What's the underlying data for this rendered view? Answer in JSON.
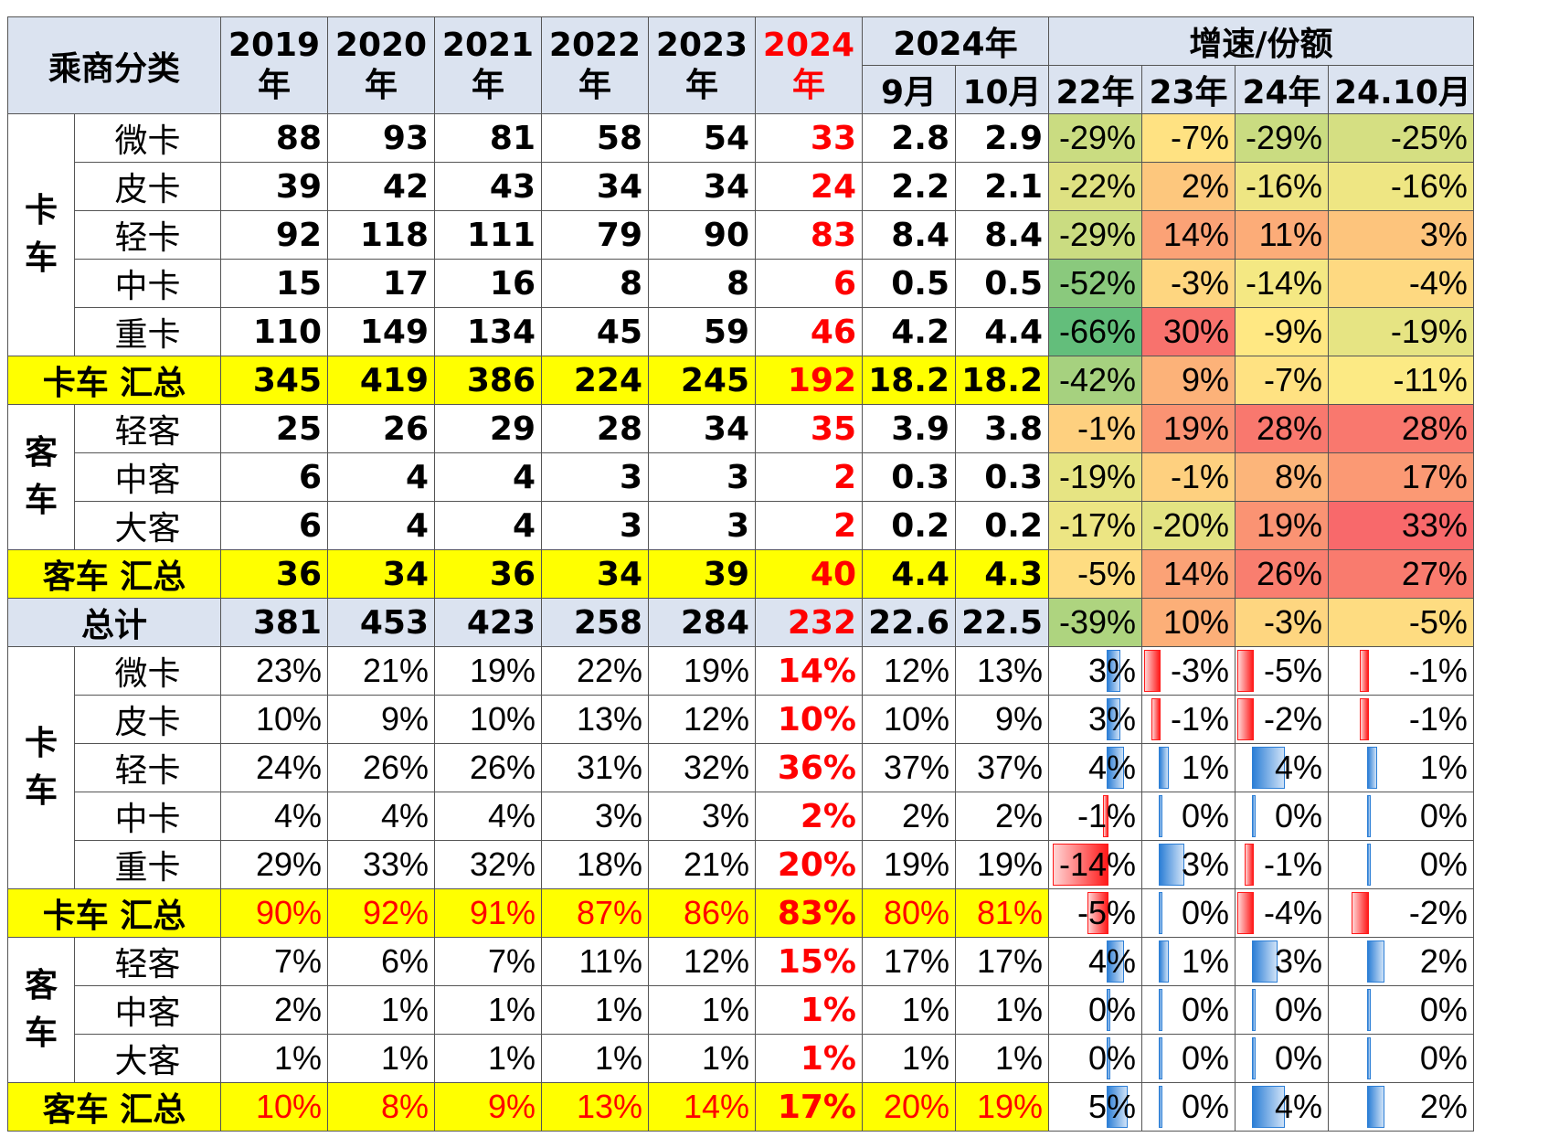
{
  "header": {
    "category": "乘商分类",
    "years": [
      "2019\n年",
      "2020\n年",
      "2021\n年",
      "2022\n年",
      "2023\n年",
      "2024\n年"
    ],
    "month_group": "2024年",
    "months": [
      "9月",
      "10月"
    ],
    "growth_group": "增速/份额",
    "growth_cols": [
      "22年",
      "23年",
      "24年",
      "24.10月"
    ]
  },
  "groups": {
    "truck": "卡车",
    "bus": "客车"
  },
  "chart_data": {
    "type": "table",
    "volume_rows": [
      {
        "name": "微卡",
        "group": "truck",
        "vals": [
          "88",
          "93",
          "81",
          "58",
          "54",
          "33",
          "2.8",
          "2.9"
        ],
        "growth": [
          "-29%",
          "-7%",
          "-29%",
          "-25%"
        ],
        "g": [
          -29,
          -7,
          -29,
          -25
        ]
      },
      {
        "name": "皮卡",
        "group": "truck",
        "vals": [
          "39",
          "42",
          "43",
          "34",
          "34",
          "24",
          "2.2",
          "2.1"
        ],
        "growth": [
          "-22%",
          "2%",
          "-16%",
          "-16%"
        ],
        "g": [
          -22,
          2,
          -16,
          -16
        ]
      },
      {
        "name": "轻卡",
        "group": "truck",
        "vals": [
          "92",
          "118",
          "111",
          "79",
          "90",
          "83",
          "8.4",
          "8.4"
        ],
        "growth": [
          "-29%",
          "14%",
          "11%",
          "3%"
        ],
        "g": [
          -29,
          14,
          11,
          3
        ]
      },
      {
        "name": "中卡",
        "group": "truck",
        "vals": [
          "15",
          "17",
          "16",
          "8",
          "8",
          "6",
          "0.5",
          "0.5"
        ],
        "growth": [
          "-52%",
          "-3%",
          "-14%",
          "-4%"
        ],
        "g": [
          -52,
          -3,
          -14,
          -4
        ]
      },
      {
        "name": "重卡",
        "group": "truck",
        "vals": [
          "110",
          "149",
          "134",
          "45",
          "59",
          "46",
          "4.2",
          "4.4"
        ],
        "growth": [
          "-66%",
          "30%",
          "-9%",
          "-19%"
        ],
        "g": [
          -66,
          30,
          -9,
          -19
        ]
      },
      {
        "name": "卡车 汇总",
        "group": "truck-sum",
        "vals": [
          "345",
          "419",
          "386",
          "224",
          "245",
          "192",
          "18.2",
          "18.2"
        ],
        "growth": [
          "-42%",
          "9%",
          "-7%",
          "-11%"
        ],
        "g": [
          -42,
          9,
          -7,
          -11
        ]
      },
      {
        "name": "轻客",
        "group": "bus",
        "vals": [
          "25",
          "26",
          "29",
          "28",
          "34",
          "35",
          "3.9",
          "3.8"
        ],
        "growth": [
          "-1%",
          "19%",
          "28%",
          "28%"
        ],
        "g": [
          -1,
          19,
          28,
          28
        ]
      },
      {
        "name": "中客",
        "group": "bus",
        "vals": [
          "6",
          "4",
          "4",
          "3",
          "3",
          "2",
          "0.3",
          "0.3"
        ],
        "growth": [
          "-19%",
          "-1%",
          "8%",
          "17%"
        ],
        "g": [
          -19,
          -1,
          8,
          17
        ]
      },
      {
        "name": "大客",
        "group": "bus",
        "vals": [
          "6",
          "4",
          "4",
          "3",
          "3",
          "2",
          "0.2",
          "0.2"
        ],
        "growth": [
          "-17%",
          "-20%",
          "19%",
          "33%"
        ],
        "g": [
          -17,
          -20,
          19,
          33
        ]
      },
      {
        "name": "客车 汇总",
        "group": "bus-sum",
        "vals": [
          "36",
          "34",
          "36",
          "34",
          "39",
          "40",
          "4.4",
          "4.3"
        ],
        "growth": [
          "-5%",
          "14%",
          "26%",
          "27%"
        ],
        "g": [
          -5,
          14,
          26,
          27
        ]
      },
      {
        "name": "总计",
        "group": "total",
        "vals": [
          "381",
          "453",
          "423",
          "258",
          "284",
          "232",
          "22.6",
          "22.5"
        ],
        "growth": [
          "-39%",
          "10%",
          "-3%",
          "-5%"
        ],
        "g": [
          -39,
          10,
          -3,
          -5
        ]
      }
    ],
    "share_rows": [
      {
        "name": "微卡",
        "group": "truck",
        "vals": [
          "23%",
          "21%",
          "19%",
          "22%",
          "19%",
          "14%",
          "12%",
          "13%"
        ],
        "delta": [
          "3%",
          "-3%",
          "-5%",
          "-1%"
        ],
        "d": [
          3,
          -3,
          -5,
          -1
        ]
      },
      {
        "name": "皮卡",
        "group": "truck",
        "vals": [
          "10%",
          "9%",
          "10%",
          "13%",
          "12%",
          "10%",
          "10%",
          "9%"
        ],
        "delta": [
          "3%",
          "-1%",
          "-2%",
          "-1%"
        ],
        "d": [
          3,
          -1,
          -2,
          -1
        ]
      },
      {
        "name": "轻卡",
        "group": "truck",
        "vals": [
          "24%",
          "26%",
          "26%",
          "31%",
          "32%",
          "36%",
          "37%",
          "37%"
        ],
        "delta": [
          "4%",
          "1%",
          "4%",
          "1%"
        ],
        "d": [
          4,
          1,
          4,
          1
        ]
      },
      {
        "name": "中卡",
        "group": "truck",
        "vals": [
          "4%",
          "4%",
          "4%",
          "3%",
          "3%",
          "2%",
          "2%",
          "2%"
        ],
        "delta": [
          "-1%",
          "0%",
          "0%",
          "0%"
        ],
        "d": [
          -1,
          0,
          0,
          0
        ]
      },
      {
        "name": "重卡",
        "group": "truck",
        "vals": [
          "29%",
          "33%",
          "32%",
          "18%",
          "21%",
          "20%",
          "19%",
          "19%"
        ],
        "delta": [
          "-14%",
          "3%",
          "-1%",
          "0%"
        ],
        "d": [
          -14,
          3,
          -1,
          0
        ]
      },
      {
        "name": "卡车 汇总",
        "group": "truck-sum",
        "vals": [
          "90%",
          "92%",
          "91%",
          "87%",
          "86%",
          "83%",
          "80%",
          "81%"
        ],
        "delta": [
          "-5%",
          "0%",
          "-4%",
          "-2%"
        ],
        "d": [
          -5,
          0,
          -4,
          -2
        ]
      },
      {
        "name": "轻客",
        "group": "bus",
        "vals": [
          "7%",
          "6%",
          "7%",
          "11%",
          "12%",
          "15%",
          "17%",
          "17%"
        ],
        "delta": [
          "4%",
          "1%",
          "3%",
          "2%"
        ],
        "d": [
          4,
          1,
          3,
          2
        ]
      },
      {
        "name": "中客",
        "group": "bus",
        "vals": [
          "2%",
          "1%",
          "1%",
          "1%",
          "1%",
          "1%",
          "1%",
          "1%"
        ],
        "delta": [
          "0%",
          "0%",
          "0%",
          "0%"
        ],
        "d": [
          0,
          0,
          0,
          0
        ]
      },
      {
        "name": "大客",
        "group": "bus",
        "vals": [
          "1%",
          "1%",
          "1%",
          "1%",
          "1%",
          "1%",
          "1%",
          "1%"
        ],
        "delta": [
          "0%",
          "0%",
          "0%",
          "0%"
        ],
        "d": [
          0,
          0,
          0,
          0
        ]
      },
      {
        "name": "客车 汇总",
        "group": "bus-sum",
        "vals": [
          "10%",
          "8%",
          "9%",
          "13%",
          "14%",
          "17%",
          "20%",
          "19%"
        ],
        "delta": [
          "5%",
          "0%",
          "4%",
          "2%"
        ],
        "d": [
          5,
          0,
          4,
          2
        ]
      }
    ]
  },
  "colors": {
    "header_bg": "#dbe3f0",
    "highlight_row": "#ffff00",
    "accent_red": "#ff0000",
    "bar_positive": "#2d7fd6",
    "bar_negative": "#ff1a1a",
    "heat_low": "#63be7b",
    "heat_mid": "#ffeb84",
    "heat_high": "#f8696b"
  }
}
